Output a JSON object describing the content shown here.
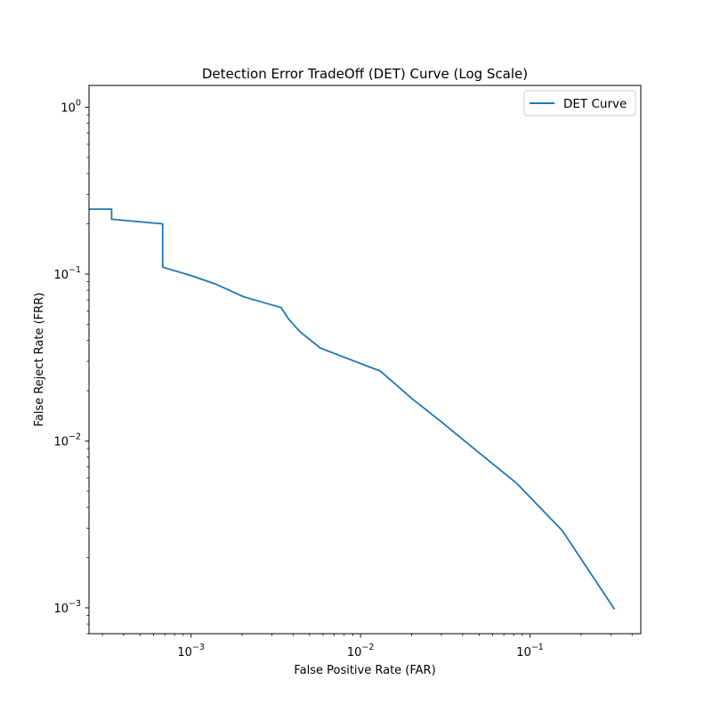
{
  "chart_data": {
    "type": "line",
    "title": "Detection Error TradeOff (DET) Curve (Log Scale)",
    "xlabel": "False Positive Rate (FAR)",
    "ylabel": "False Reject Rate (FRR)",
    "xscale": "log",
    "yscale": "log",
    "xlim": [
      0.00025,
      0.45
    ],
    "ylim": [
      0.0007,
      1.35
    ],
    "x_major_ticks": [
      {
        "value": 0.001,
        "base": "10",
        "exp": "−3"
      },
      {
        "value": 0.01,
        "base": "10",
        "exp": "−2"
      },
      {
        "value": 0.1,
        "base": "10",
        "exp": "−1"
      }
    ],
    "y_major_ticks": [
      {
        "value": 0.001,
        "base": "10",
        "exp": "−3"
      },
      {
        "value": 0.01,
        "base": "10",
        "exp": "−2"
      },
      {
        "value": 0.1,
        "base": "10",
        "exp": "−1"
      },
      {
        "value": 1,
        "base": "10",
        "exp": "0"
      }
    ],
    "grid": false,
    "legend_position": "top-right",
    "series": [
      {
        "name": "DET Curve",
        "color": "#1f77b4",
        "x": [
          0.00025,
          0.00034,
          0.00034,
          0.00068,
          0.00068,
          0.001,
          0.0014,
          0.00205,
          0.0034,
          0.00375,
          0.0044,
          0.0058,
          0.0131,
          0.02,
          0.03,
          0.05,
          0.083,
          0.155,
          0.315
        ],
        "y": [
          0.245,
          0.245,
          0.213,
          0.2,
          0.11,
          0.098,
          0.087,
          0.073,
          0.063,
          0.054,
          0.045,
          0.036,
          0.0262,
          0.018,
          0.013,
          0.0085,
          0.0056,
          0.0029,
          0.00098
        ]
      }
    ]
  }
}
